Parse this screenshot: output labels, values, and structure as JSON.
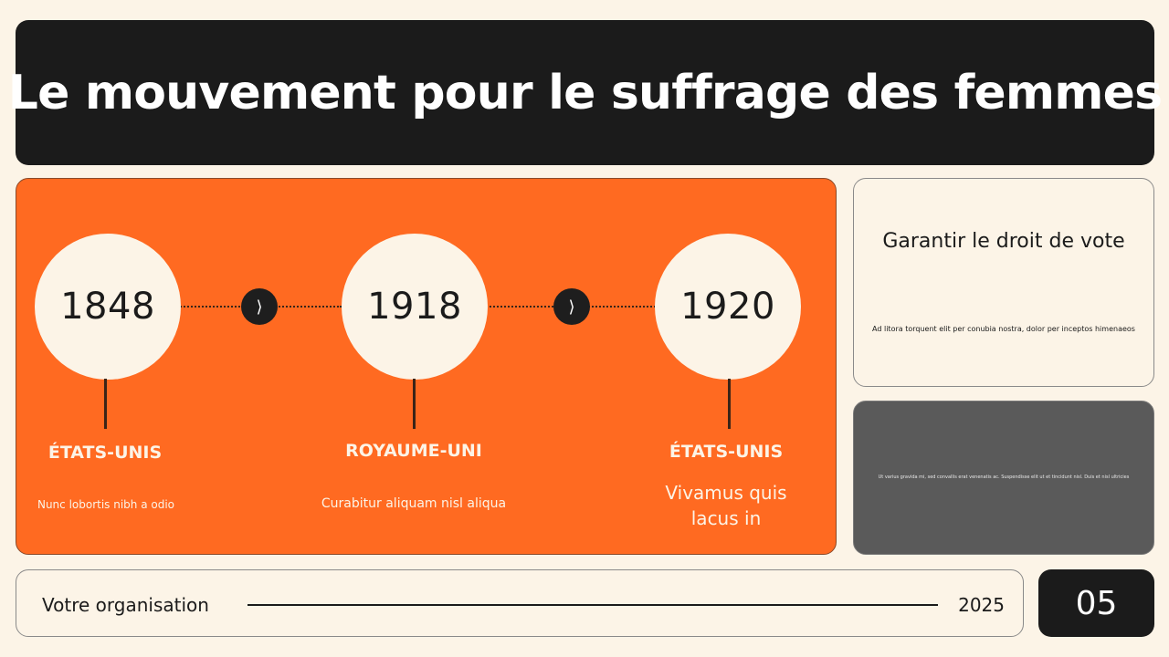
{
  "title": "Le mouvement pour le suffrage des femmes",
  "timeline": [
    {
      "year": "1848",
      "country": "ÉTATS-UNIS",
      "description": "Nunc lobortis nibh a odio"
    },
    {
      "year": "1918",
      "country": "ROYAUME-UNI",
      "description": "Curabitur aliquam nisl aliqua"
    },
    {
      "year": "1920",
      "country": "ÉTATS-UNIS",
      "description": "Vivamus quis lacus in"
    }
  ],
  "arrow_icon": "chevron-right-icon",
  "card_top": {
    "heading": "Garantir le droit de vote",
    "text": "Ad litora torquent elit per conubia nostra, dolor per inceptos himenaeos"
  },
  "card_bottom": {
    "text": "Ut varius gravida mi, sed convallis erat venenatis ac. Suspendisse elit ut et tincidunt nisl. Duis et nisl ultricies"
  },
  "footer": {
    "organization": "Votre organisation",
    "year": "2025"
  },
  "page_number": "05",
  "colors": {
    "background": "#fcf4e7",
    "dark": "#1b1b1b",
    "accent": "#ff6a21",
    "gray_card": "#5a5a5a"
  }
}
